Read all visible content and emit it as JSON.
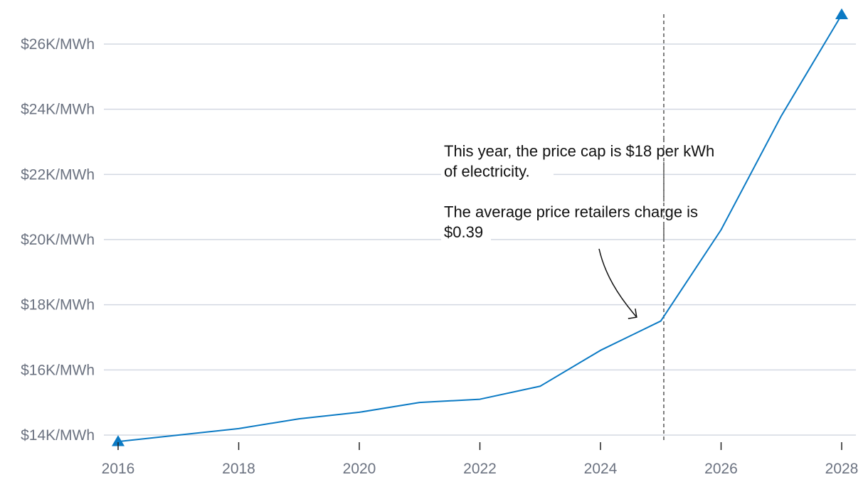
{
  "colors": {
    "series": "#0b7ac4",
    "grid": "#d3d8e2",
    "axis_text": "#6b7280",
    "annotation": "#111111",
    "reference_line": "#555555"
  },
  "chart_data": {
    "type": "line",
    "title": "",
    "xlabel": "",
    "ylabel": "",
    "x": [
      2016,
      2017,
      2018,
      2019,
      2020,
      2021,
      2022,
      2023,
      2024,
      2025,
      2026,
      2027,
      2028
    ],
    "series": [
      {
        "name": "Price cap",
        "values": [
          13.8,
          14.0,
          14.2,
          14.5,
          14.7,
          15.0,
          15.1,
          15.5,
          16.6,
          17.5,
          20.3,
          23.8,
          26.9
        ]
      }
    ],
    "xlim": [
      2016,
      2028
    ],
    "ylim": [
      14,
      27
    ],
    "x_ticks": [
      2016,
      2018,
      2020,
      2022,
      2024,
      2026,
      2028
    ],
    "x_tick_labels": [
      "2016",
      "2018",
      "2020",
      "2022",
      "2024",
      "2026",
      "2028"
    ],
    "y_ticks": [
      14,
      16,
      18,
      20,
      22,
      24,
      26
    ],
    "y_tick_labels": [
      "$14K/MWh",
      "$16K/MWh",
      "$18K/MWh",
      "$20K/MWh",
      "$22K/MWh",
      "$24K/MWh",
      "$26K/MWh"
    ],
    "grid": true,
    "reference_line_x": 2025.05,
    "endpoint_markers": "triangle",
    "annotation": {
      "lines": [
        "This year, the price cap is $18 per kWh",
        "of electricity.",
        "",
        "The average price retailers charge is",
        "$0.39"
      ],
      "arrow_target_x": 2024.6,
      "arrow_target_y": 17.4
    }
  }
}
